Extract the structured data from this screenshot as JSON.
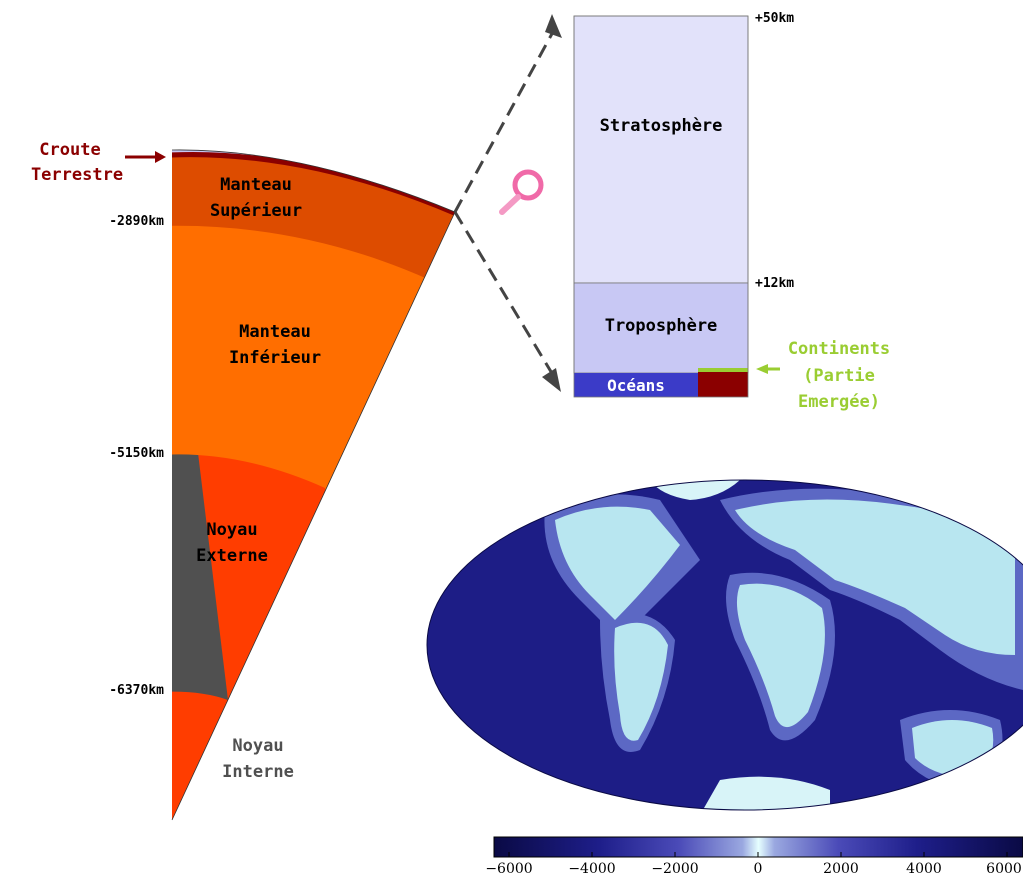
{
  "earth_section": {
    "crust": {
      "line1": "Croute",
      "line2": "Terrestre"
    },
    "layers": [
      {
        "line1": "Manteau",
        "line2": "Supérieur",
        "color": "#dd4c00"
      },
      {
        "line1": "Manteau",
        "line2": "Inférieur",
        "color": "#ff6e00"
      },
      {
        "line1": "Noyau",
        "line2": "Externe",
        "color": "#ff3d00"
      },
      {
        "line1": "Noyau",
        "line2": "Interne",
        "color": "#505050"
      }
    ],
    "depths": [
      "-2890km",
      "-5150km",
      "-6370km"
    ]
  },
  "atmosphere": {
    "stratosphere": "Stratosphère",
    "troposphere": "Troposphère",
    "oceans": "Océans",
    "altitudes": [
      "+50km",
      "+12km"
    ],
    "continents": {
      "line1": "Continents",
      "line2": "(Partie",
      "line3": "Emergée)"
    },
    "magnifier": "magnifier-icon"
  },
  "colorbar": {
    "ticks": [
      "−6000",
      "−4000",
      "−2000",
      "0",
      "2000",
      "4000",
      "6000"
    ]
  },
  "colors": {
    "crust": "#8b0000",
    "continents_label": "#9acd32",
    "stratosphere": "#e2e2fa",
    "troposphere": "#c8c8f4",
    "oceans": "#3b3bc8"
  }
}
